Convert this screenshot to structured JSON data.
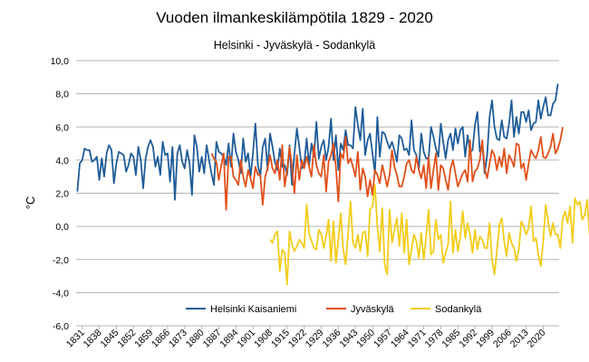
{
  "chart_data": {
    "type": "line",
    "title": "Vuoden ilmankeskilämpötila 1829 - 2020",
    "subtitle": "Helsinki - Jyväskylä - Sodankylä",
    "xlabel": "",
    "ylabel": "°C",
    "ylim": [
      -6,
      10
    ],
    "yticks": [
      "10,0",
      "8,0",
      "6,0",
      "4,0",
      "2,0",
      "0,0",
      "-2,0",
      "-4,0",
      "-6,0"
    ],
    "xticks": [
      "1831",
      "1838",
      "1845",
      "1852",
      "1859",
      "1866",
      "1873",
      "1880",
      "1887",
      "1894",
      "1901",
      "1908",
      "1915",
      "1922",
      "1929",
      "1936",
      "1943",
      "1950",
      "1957",
      "1964",
      "1971",
      "1978",
      "1985",
      "1992",
      "1999",
      "2006",
      "2013",
      "2020"
    ],
    "grid": "horizontal",
    "legend": "bottom",
    "x_start": 1829,
    "series": [
      {
        "name": "Helsinki Kaisaniemi",
        "color": "#1f5c99",
        "start_year": 1829,
        "values": [
          2.1,
          3.8,
          4.0,
          4.7,
          4.6,
          4.6,
          3.9,
          4.0,
          4.2,
          2.8,
          4.1,
          3.0,
          4.4,
          4.9,
          4.6,
          2.6,
          3.8,
          4.5,
          4.4,
          4.3,
          3.3,
          3.7,
          4.4,
          4.2,
          3.1,
          4.8,
          4.0,
          2.3,
          4.1,
          4.8,
          5.2,
          4.8,
          3.6,
          4.2,
          3.1,
          5.1,
          4.3,
          4.4,
          2.7,
          4.8,
          1.6,
          4.4,
          4.9,
          3.9,
          3.5,
          4.6,
          3.8,
          1.9,
          5.5,
          4.8,
          3.3,
          4.2,
          3.2,
          4.9,
          4.0,
          3.2,
          2.5,
          5.1,
          4.5,
          4.4,
          4.2,
          3.7,
          5.0,
          3.6,
          5.6,
          4.5,
          4.0,
          3.2,
          5.3,
          3.9,
          4.4,
          3.0,
          4.4,
          6.2,
          3.7,
          3.0,
          4.8,
          5.3,
          3.4,
          5.6,
          4.8,
          3.9,
          3.4,
          4.7,
          3.6,
          3.7,
          3.1,
          4.9,
          2.5,
          4.4,
          5.9,
          4.8,
          3.5,
          3.7,
          5.3,
          3.7,
          5.0,
          4.2,
          6.3,
          4.1,
          4.8,
          5.2,
          4.0,
          4.8,
          6.5,
          4.0,
          5.5,
          3.4,
          5.0,
          4.6,
          5.8,
          4.9,
          4.9,
          4.7,
          7.2,
          6.1,
          5.2,
          7.1,
          4.3,
          5.2,
          5.6,
          4.4,
          3.2,
          6.6,
          4.2,
          5.7,
          5.6,
          5.1,
          4.7,
          5.1,
          4.6,
          3.9,
          5.5,
          5.3,
          4.6,
          4.7,
          4.3,
          6.4,
          4.6,
          4.3,
          3.5,
          5.6,
          4.5,
          4.1,
          4.1,
          6.0,
          5.4,
          4.7,
          4.2,
          6.2,
          5.1,
          4.1,
          5.2,
          5.6,
          4.6,
          5.9,
          5.0,
          5.8,
          6.0,
          4.2,
          5.5,
          4.5,
          4.6,
          6.1,
          6.9,
          4.5,
          5.0,
          3.2,
          4.3,
          6.6,
          7.6,
          6.0,
          5.3,
          5.2,
          6.4,
          5.4,
          5.3,
          6.2,
          7.6,
          5.4,
          6.6,
          5.6,
          6.9,
          6.9,
          6.3,
          7.0,
          5.8,
          6.2,
          6.3,
          7.6,
          6.5,
          7.2,
          7.8,
          6.7,
          6.7,
          7.4,
          7.6,
          8.6
        ]
      },
      {
        "name": "Jyväskylä",
        "color": "#e0501a",
        "start_year": 1884,
        "values": [
          4.4,
          4.1,
          3.9,
          2.8,
          3.7,
          4.4,
          1.0,
          4.2,
          4.2,
          3.0,
          2.8,
          2.5,
          4.0,
          3.0,
          2.4,
          3.4,
          2.9,
          2.3,
          3.6,
          3.1,
          3.1,
          1.3,
          3.0,
          3.5,
          4.3,
          3.5,
          3.2,
          4.0,
          2.8,
          4.9,
          2.4,
          3.4,
          4.8,
          3.6,
          2.0,
          4.3,
          2.8,
          4.0,
          3.5,
          4.2,
          3.6,
          3.0,
          4.9,
          3.7,
          3.2,
          3.0,
          4.3,
          2.1,
          3.9,
          4.3,
          5.0,
          3.6,
          1.5,
          4.4,
          4.1,
          5.4,
          3.8,
          4.1,
          3.6,
          3.0,
          4.5,
          2.2,
          3.5,
          3.0,
          1.8,
          2.8,
          1.9,
          3.4,
          3.1,
          2.6,
          3.7,
          3.1,
          2.4,
          3.1,
          4.6,
          3.6,
          3.1,
          2.4,
          2.4,
          3.0,
          3.8,
          4.0,
          3.4,
          3.2,
          4.2,
          3.4,
          2.9,
          3.7,
          2.3,
          4.2,
          2.3,
          3.4,
          4.4,
          2.2,
          3.7,
          3.5,
          2.8,
          2.2,
          3.5,
          4.0,
          3.2,
          2.4,
          2.8,
          3.2,
          3.4,
          2.7,
          5.2,
          2.7,
          3.3,
          3.5,
          4.0,
          5.2,
          3.5,
          2.9,
          3.8,
          4.6,
          4.3,
          3.4,
          4.2,
          3.6,
          4.7,
          3.2,
          4.3,
          4.0,
          3.6,
          5.0,
          4.9,
          3.5,
          3.8,
          2.8,
          3.8,
          4.6,
          4.3,
          4.1,
          4.6,
          5.4,
          4.2,
          4.1,
          4.4,
          4.8,
          5.6,
          4.4,
          4.7,
          5.2,
          6.0
        ]
      },
      {
        "name": "Sodankylä",
        "color": "#f2cc1a",
        "start_year": 1908,
        "values": [
          -0.8,
          -1.0,
          -0.5,
          -0.3,
          -2.7,
          -1.4,
          -1.6,
          -3.5,
          -0.3,
          -1.1,
          -1.5,
          -1.2,
          -0.8,
          -1.0,
          -1.3,
          1.3,
          -0.4,
          -0.9,
          -1.3,
          -1.4,
          -0.2,
          -0.5,
          -1.3,
          -0.6,
          0.4,
          -2.1,
          0.3,
          -2.2,
          -0.8,
          0.8,
          -1.4,
          -2.3,
          -0.4,
          1.5,
          -1.0,
          -1.3,
          -0.5,
          -1.5,
          -0.4,
          -0.3,
          -1.8,
          1.0,
          1.2,
          2.5,
          0.0,
          -1.5,
          1.1,
          -2.3,
          -2.9,
          1.0,
          -1.0,
          -0.2,
          0.5,
          -1.2,
          0.8,
          -1.6,
          0.4,
          -2.3,
          -1.4,
          -0.5,
          -0.9,
          -1.9,
          -0.4,
          -2.0,
          -0.6,
          1.0,
          -1.7,
          -1.5,
          0.4,
          -0.8,
          -0.5,
          -2.2,
          -1.6,
          -1.1,
          1.5,
          -1.6,
          -0.2,
          -1.5,
          -0.6,
          0.9,
          -0.7,
          0.2,
          -0.5,
          -1.6,
          -0.2,
          -1.4,
          -0.6,
          -0.8,
          -1.3,
          -1.3,
          0.2,
          -2.0,
          -2.9,
          -1.5,
          0.1,
          0.5,
          -0.9,
          -1.8,
          -0.4,
          -1.0,
          -1.3,
          -2.1,
          -1.4,
          0.3,
          0.0,
          -0.5,
          -0.1,
          1.2,
          -0.9,
          -0.7,
          -1.7,
          -2.4,
          -0.9,
          1.3,
          0.3,
          -0.6,
          0.2,
          -0.5,
          -0.5,
          -1.3,
          0.5,
          0.9,
          0.2,
          1.2,
          -1.0,
          1.7,
          1.3,
          1.5,
          0.4,
          0.7,
          1.6,
          -0.5,
          1.3,
          0.3,
          2.3
        ]
      }
    ]
  }
}
